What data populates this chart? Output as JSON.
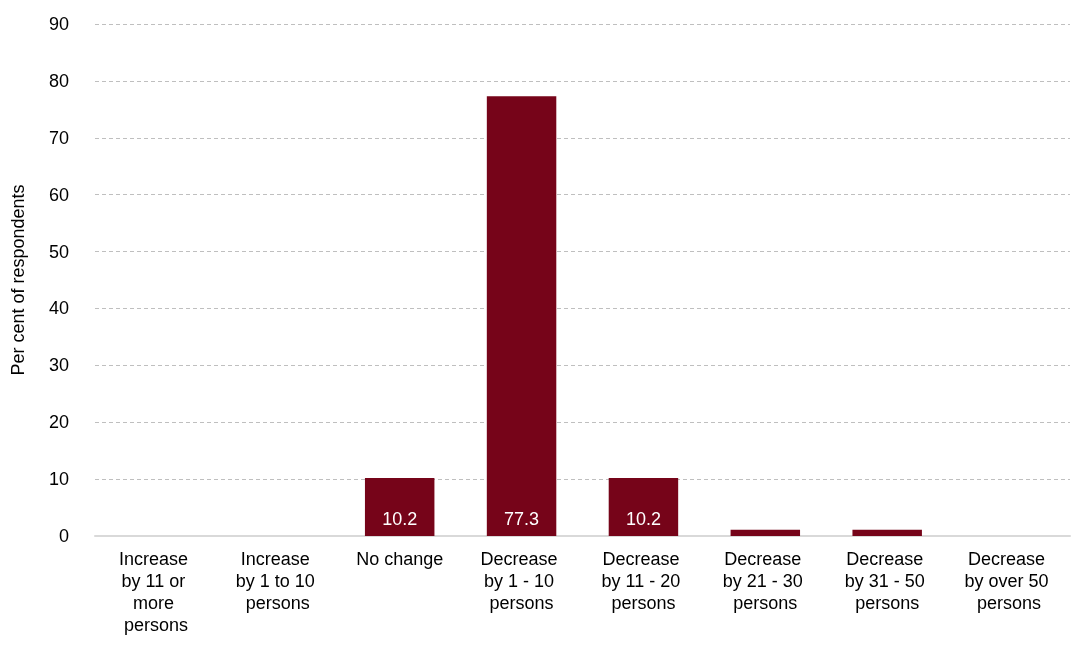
{
  "chart_data": {
    "type": "bar",
    "ylabel": "Per cent of respondents",
    "categories": [
      "Increase by 11 or more persons",
      "Increase by 1 to 10 persons",
      "No change",
      "Decrease by 1 - 10 persons",
      "Decrease by 11 - 20 persons",
      "Decrease by 21 - 30 persons",
      "Decrease by 31 - 50 persons",
      "Decrease by over 50 persons"
    ],
    "values": [
      0,
      0,
      10.2,
      77.3,
      10.2,
      1.1,
      1.1,
      0
    ],
    "value_labels": [
      null,
      null,
      "10.2",
      "77.3",
      "10.2",
      null,
      null,
      null
    ],
    "color": "#760419",
    "ylim": [
      0,
      90
    ],
    "yticks": [
      0,
      10,
      20,
      30,
      40,
      50,
      60,
      70,
      80,
      90
    ],
    "grid": "y"
  }
}
